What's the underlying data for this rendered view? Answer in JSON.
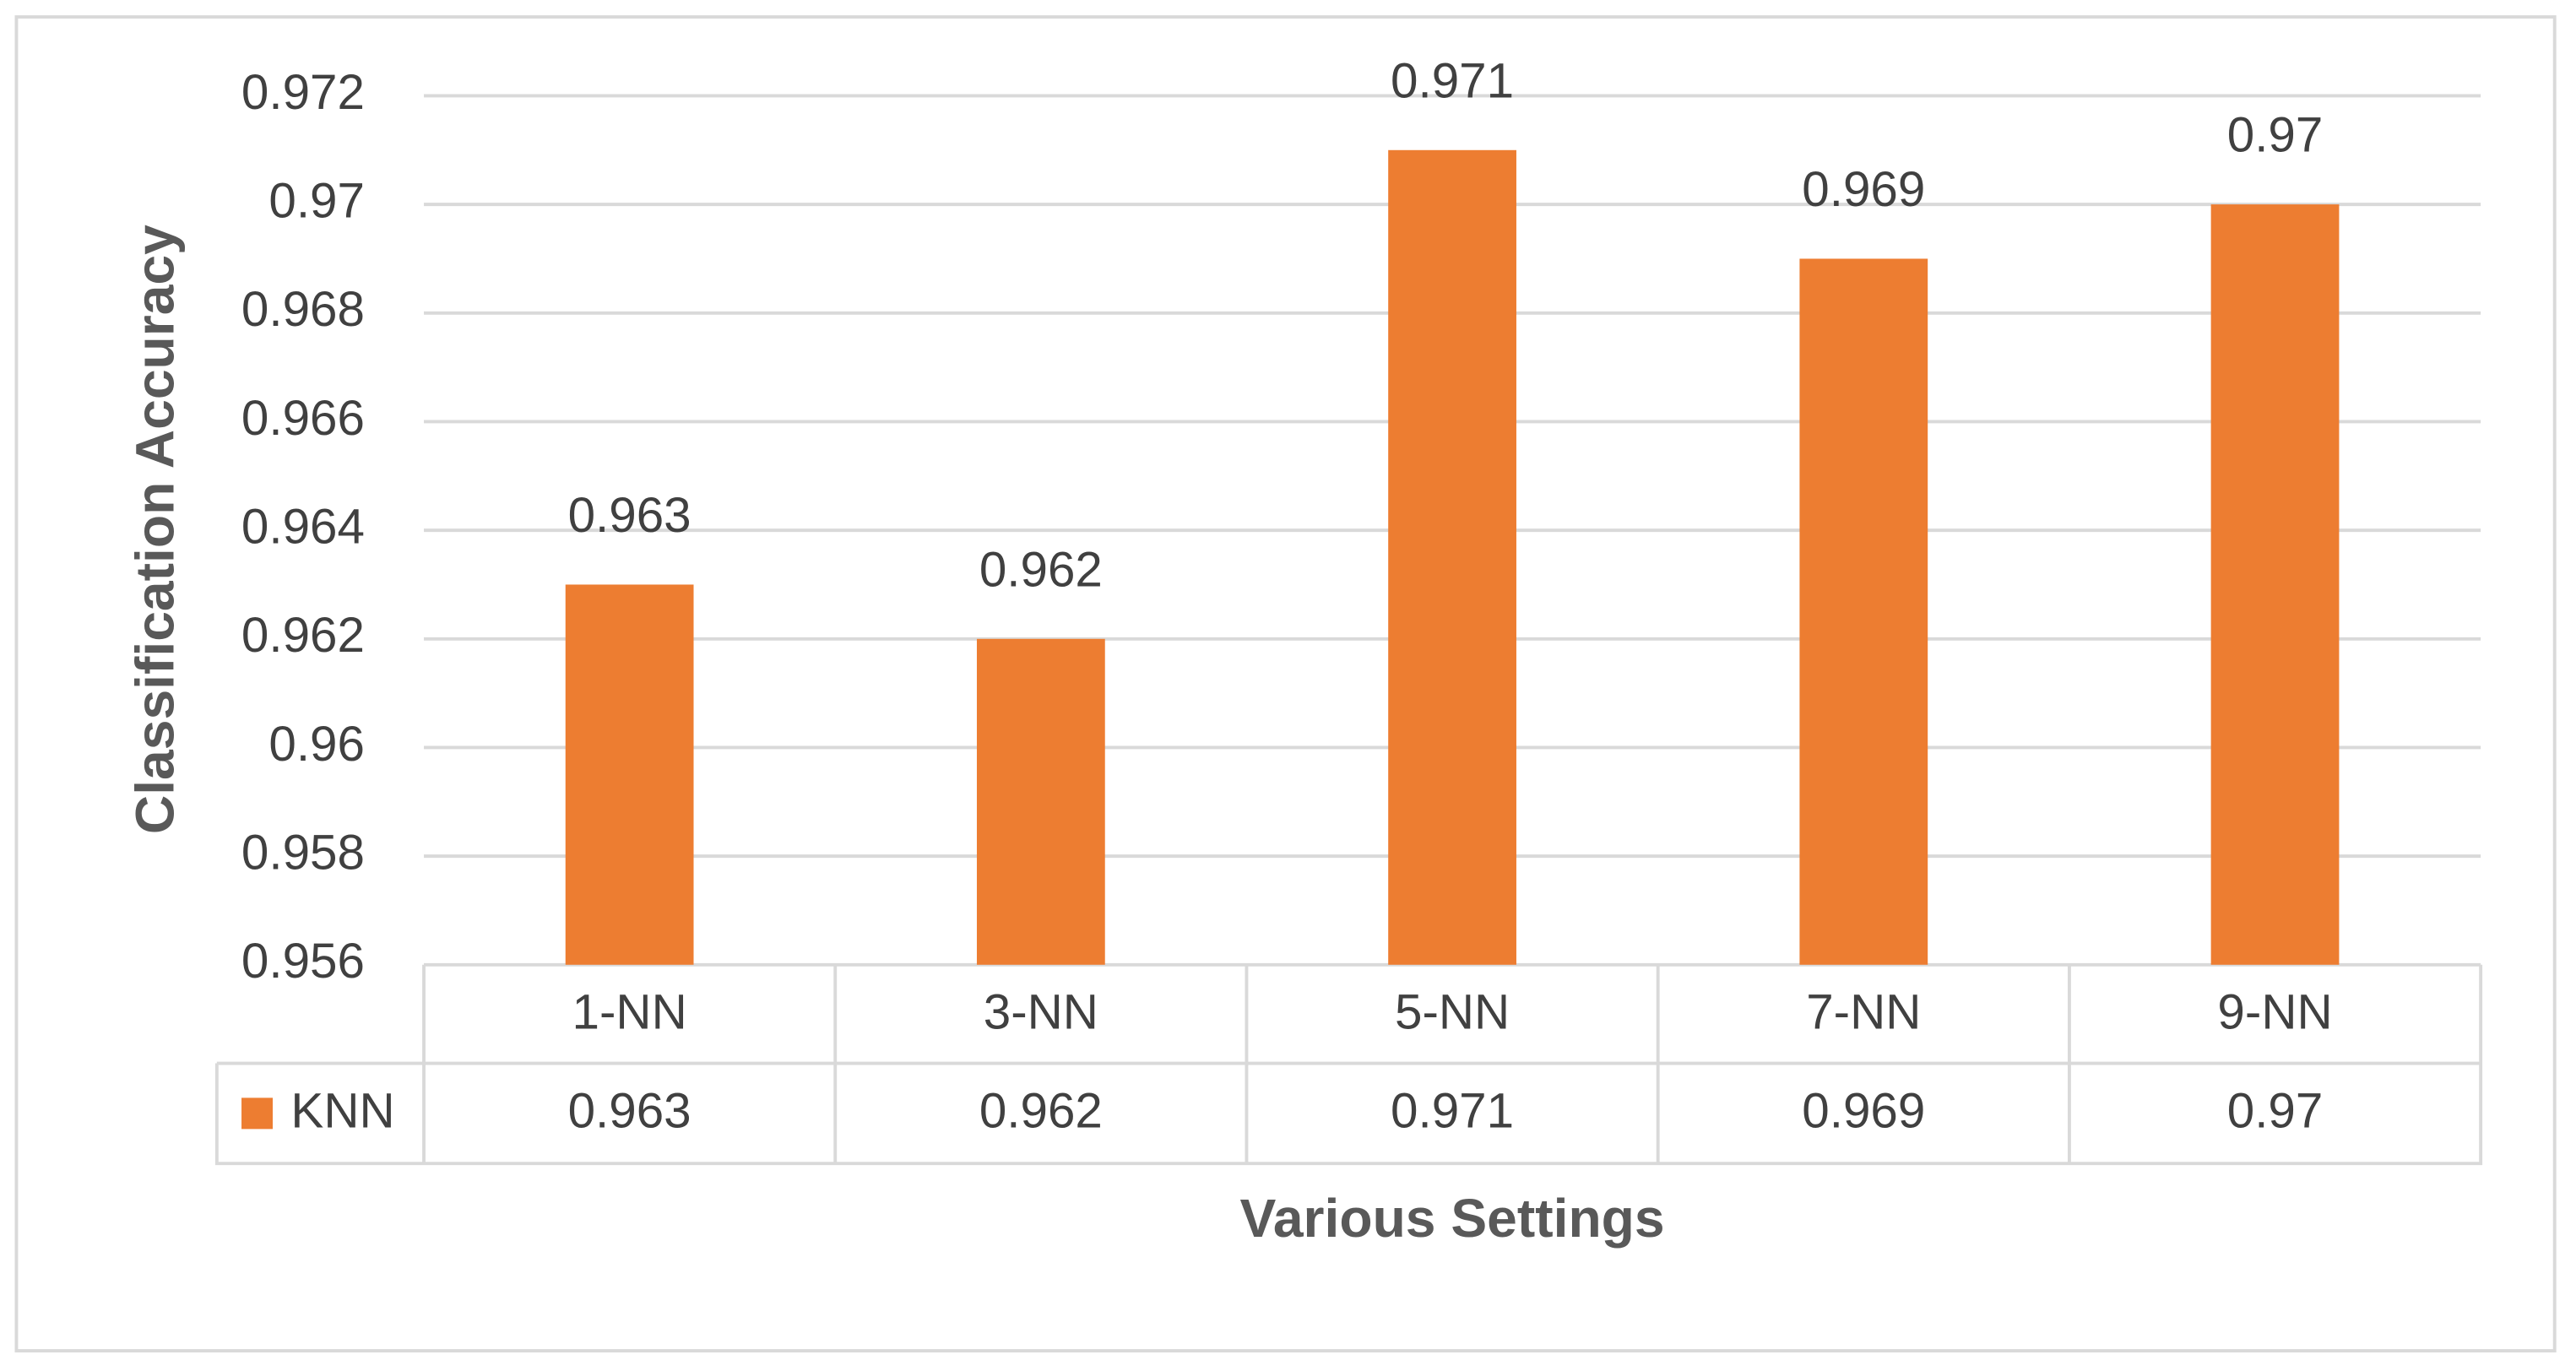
{
  "chart_data": {
    "type": "bar",
    "x_label": "Various Settings",
    "y_label": "Classification Accuracy",
    "categories": [
      "1-NN",
      "3-NN",
      "5-NN",
      "7-NN",
      "9-NN"
    ],
    "series": [
      {
        "name": "KNN",
        "color": "#ed7d31",
        "values": [
          0.963,
          0.962,
          0.971,
          0.969,
          0.97
        ]
      }
    ],
    "ylim": [
      0.956,
      0.972
    ],
    "yticks": [
      0.956,
      0.958,
      0.96,
      0.962,
      0.964,
      0.966,
      0.968,
      0.97,
      0.972
    ],
    "grid": true,
    "data_table": true
  }
}
